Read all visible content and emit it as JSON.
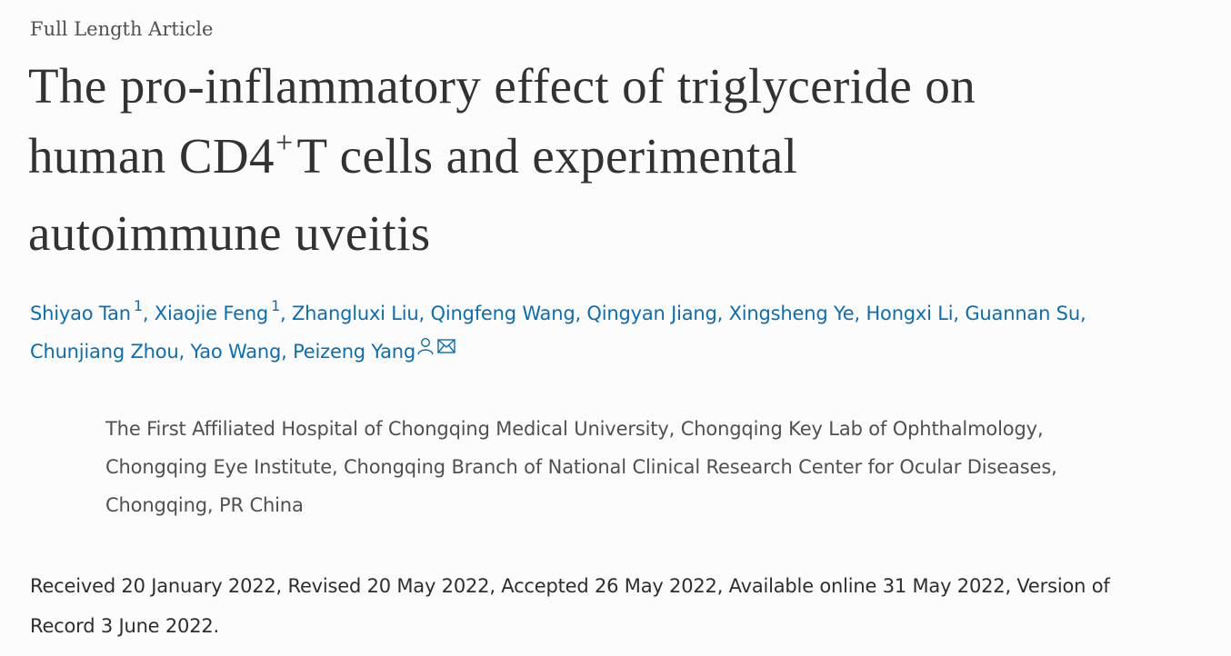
{
  "article_type": "Full Length Article",
  "title": {
    "line1": "The pro-inflammatory effect of triglyceride on",
    "line2_before": "human CD4",
    "line2_sup": "+",
    "line2_after": "T cells and experimental",
    "line3": "autoimmune uveitis"
  },
  "authors": {
    "list": [
      {
        "name": "Shiyao Tan",
        "sup": "1"
      },
      {
        "name": "Xiaojie Feng",
        "sup": "1"
      },
      {
        "name": "Zhangluxi Liu"
      },
      {
        "name": "Qingfeng Wang"
      },
      {
        "name": "Qingyan Jiang"
      },
      {
        "name": "Xingsheng Ye"
      },
      {
        "name": "Hongxi Li"
      },
      {
        "name": "Guannan Su"
      },
      {
        "name": "Chunjiang Zhou"
      },
      {
        "name": "Yao Wang"
      },
      {
        "name": "Peizeng Yang"
      }
    ],
    "separator": ", ",
    "icons": [
      "person-icon",
      "envelope-icon"
    ],
    "link_color": "#0a6eb4"
  },
  "affiliation": {
    "line1": "The First Affiliated Hospital of Chongqing Medical University, Chongqing Key Lab of Ophthalmology,",
    "line2": "Chongqing Eye Institute, Chongqing Branch of National Clinical Research Center for Ocular Diseases,",
    "line3": "Chongqing, PR China"
  },
  "history": {
    "line1": "Received 20 January 2022, Revised 20 May 2022, Accepted 26 May 2022, Available online 31 May 2022, Version of",
    "line2": "Record 3 June 2022."
  }
}
